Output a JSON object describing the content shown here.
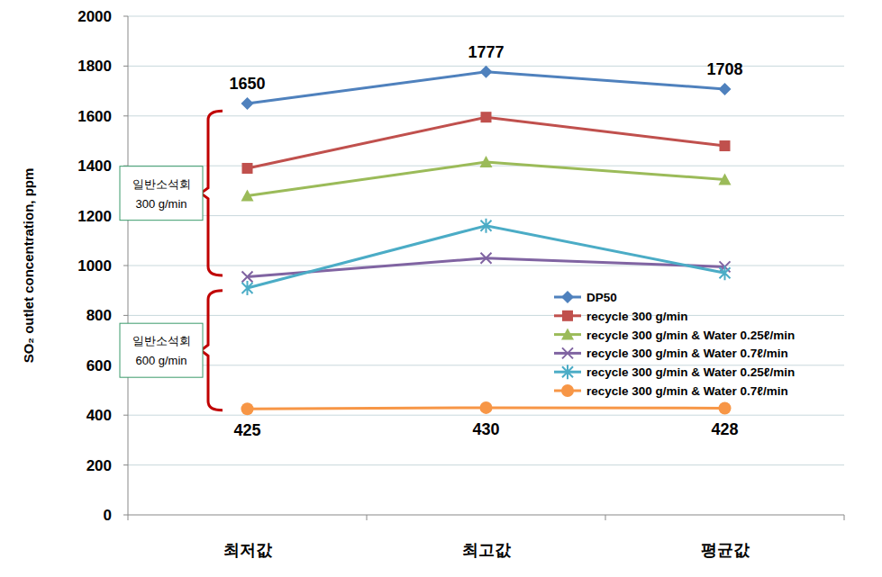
{
  "chart_data": {
    "type": "line",
    "y_label": "SO₂ outlet concentration, ppm",
    "categories": [
      "최저값",
      "최고값",
      "평균값"
    ],
    "ylim": [
      0,
      2000
    ],
    "yticks": [
      0,
      200,
      400,
      600,
      800,
      1000,
      1200,
      1400,
      1600,
      1800,
      2000
    ],
    "grid": true,
    "legend": "right",
    "series": [
      {
        "name": "DP50",
        "color": "#4f81bd",
        "marker": "diamond",
        "data_labels": true,
        "values": [
          1650,
          1777,
          1708
        ]
      },
      {
        "name": "recycle 300 g/min",
        "color": "#c0504d",
        "marker": "square",
        "values": [
          1390,
          1595,
          1480
        ]
      },
      {
        "name": "recycle 300 g/min & Water 0.25ℓ/min",
        "color": "#9bbb59",
        "marker": "triangle",
        "values": [
          1280,
          1415,
          1345
        ]
      },
      {
        "name": "recycle 300 g/min & Water 0.7ℓ/min",
        "color": "#8064a2",
        "marker": "x",
        "values": [
          955,
          1030,
          995
        ]
      },
      {
        "name": "recycle 300 g/min & Water 0.25ℓ/min",
        "color": "#4bacc6",
        "marker": "star",
        "values": [
          910,
          1160,
          970
        ]
      },
      {
        "name": "recycle 300 g/min & Water 0.7ℓ/min",
        "color": "#f79646",
        "marker": "circle",
        "data_labels": true,
        "values": [
          425,
          430,
          428
        ]
      }
    ],
    "annotations": [
      {
        "lines": [
          "일반소석회",
          "300 g/min"
        ],
        "y_range": [
          960,
          1620
        ],
        "color": "#c00000"
      },
      {
        "lines": [
          "일반소석회",
          "600 g/min"
        ],
        "y_range": [
          420,
          900
        ],
        "color": "#c00000"
      }
    ]
  }
}
